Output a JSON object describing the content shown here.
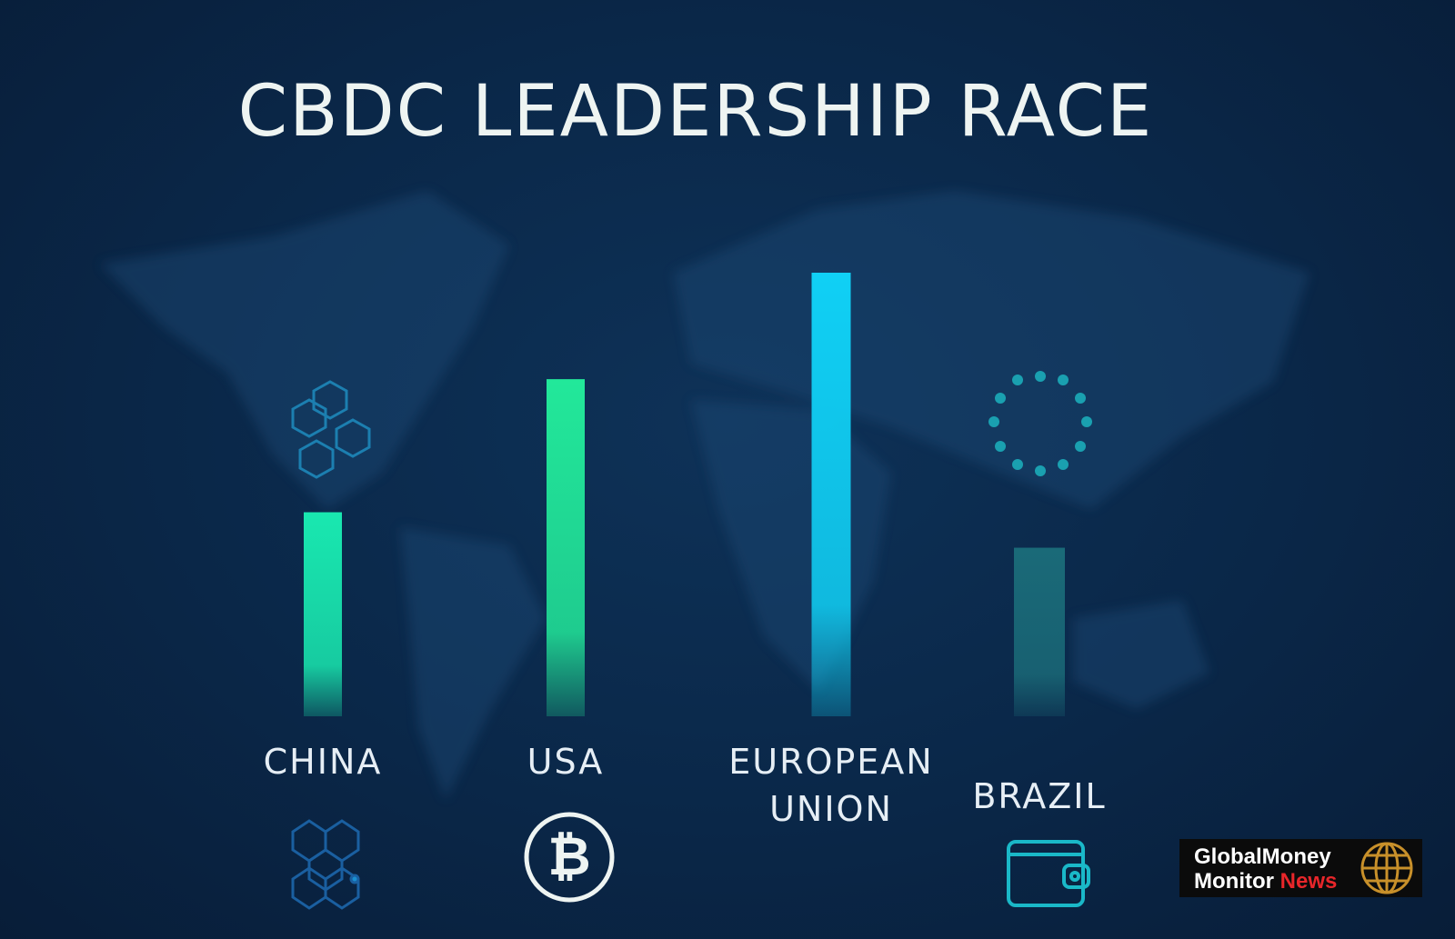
{
  "chart_data": {
    "type": "bar",
    "title": "CBDC LEADERSHIP RACE",
    "categories": [
      "CHINA",
      "USA",
      "EUROPEAN UNION",
      "BRAZIL"
    ],
    "values": [
      46,
      76,
      100,
      38
    ],
    "colors": [
      "#19e8b0",
      "#22e89a",
      "#10d0f5",
      "#1a6a78"
    ]
  },
  "brand": {
    "line1": "GlobalMoney",
    "line2": "Monitor",
    "accent": "News"
  }
}
